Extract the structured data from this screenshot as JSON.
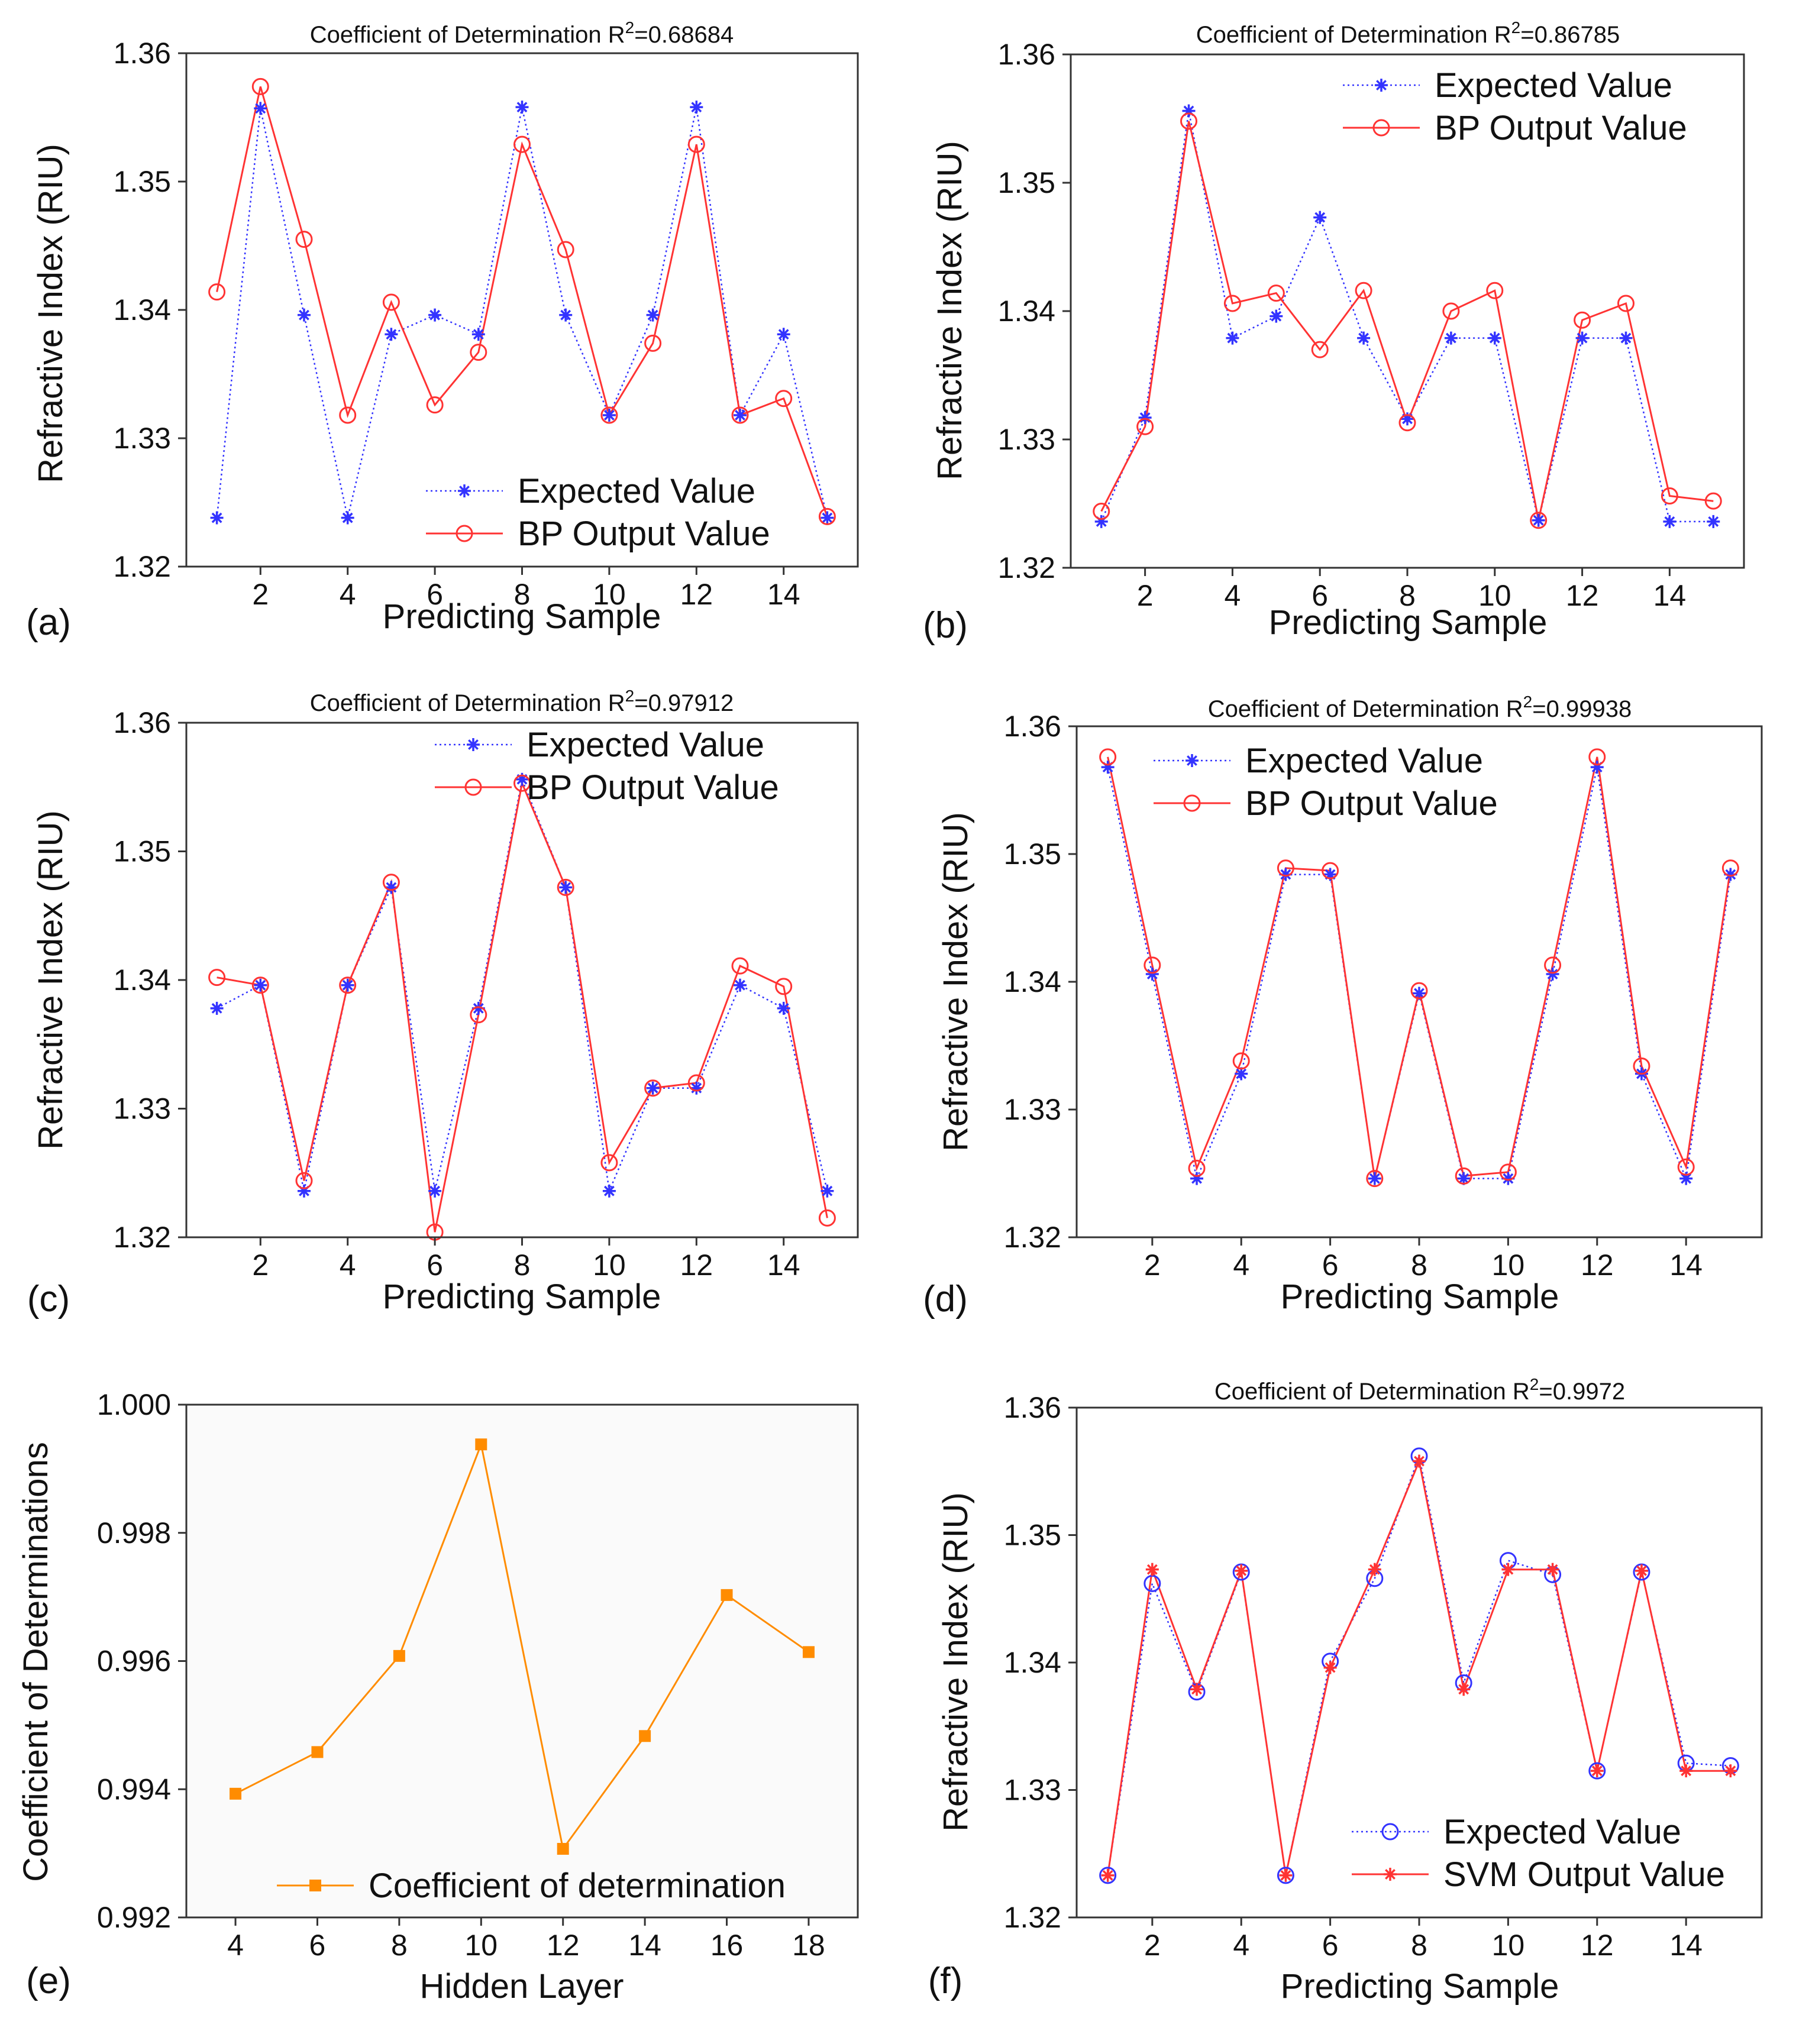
{
  "figure": {
    "chart_data": [
      {
        "panel": "(a)",
        "type": "line",
        "title": "Coefficient of Determination R²=0.68684",
        "title_prefix": "Coefficient of Determination R",
        "title_sup": "2",
        "title_suffix": "=0.68684",
        "xlabel": "Predicting Sample",
        "ylabel": "Refractive Index (RIU)",
        "xlim": [
          0.3,
          15.7
        ],
        "ylim": [
          1.32,
          1.36
        ],
        "xticks": [
          2,
          4,
          6,
          8,
          10,
          12,
          14
        ],
        "yticks": [
          1.32,
          1.33,
          1.34,
          1.35,
          1.36
        ],
        "ytick_labels": [
          "1.32",
          "1.33",
          "1.34",
          "1.35",
          "1.36"
        ],
        "legend_position": "lower-right",
        "series": [
          {
            "name": "Expected Value",
            "color": "#3333ff",
            "style": "dotted",
            "marker": "star",
            "x": [
              1,
              2,
              3,
              4,
              5,
              6,
              7,
              8,
              9,
              10,
              11,
              12,
              13,
              14,
              15
            ],
            "values": [
              1.3238,
              1.3557,
              1.3396,
              1.3238,
              1.3381,
              1.3396,
              1.3381,
              1.3558,
              1.3396,
              1.3318,
              1.3396,
              1.3558,
              1.3318,
              1.3381,
              1.3238
            ]
          },
          {
            "name": "BP Output Value",
            "color": "#ff3333",
            "style": "solid",
            "marker": "circle",
            "x": [
              1,
              2,
              3,
              4,
              5,
              6,
              7,
              8,
              9,
              10,
              11,
              12,
              13,
              14,
              15
            ],
            "values": [
              1.3414,
              1.3574,
              1.3455,
              1.3318,
              1.3406,
              1.3326,
              1.3367,
              1.3529,
              1.3447,
              1.3318,
              1.3374,
              1.3529,
              1.3318,
              1.3331,
              1.3239
            ]
          }
        ]
      },
      {
        "panel": "(b)",
        "type": "line",
        "title": "Coefficient of Determination R²=0.86785",
        "title_prefix": "Coefficient of Determination R",
        "title_sup": "2",
        "title_suffix": "=0.86785",
        "xlabel": "Predicting Sample",
        "ylabel": "Refractive Index (RIU)",
        "xlim": [
          0.3,
          15.7
        ],
        "ylim": [
          1.32,
          1.36
        ],
        "xticks": [
          2,
          4,
          6,
          8,
          10,
          12,
          14
        ],
        "yticks": [
          1.32,
          1.33,
          1.34,
          1.35,
          1.36
        ],
        "ytick_labels": [
          "1.32",
          "1.33",
          "1.34",
          "1.35",
          "1.36"
        ],
        "legend_position": "top-right",
        "series": [
          {
            "name": "Expected Value",
            "color": "#3333ff",
            "style": "dotted",
            "marker": "star",
            "x": [
              1,
              2,
              3,
              4,
              5,
              6,
              7,
              8,
              9,
              10,
              11,
              12,
              13,
              14,
              15
            ],
            "values": [
              1.3236,
              1.3317,
              1.3556,
              1.3379,
              1.3396,
              1.3473,
              1.3379,
              1.3316,
              1.3379,
              1.3379,
              1.3237,
              1.3379,
              1.3379,
              1.3236,
              1.3236
            ]
          },
          {
            "name": "BP Output Value",
            "color": "#ff3333",
            "style": "solid",
            "marker": "circle",
            "x": [
              1,
              2,
              3,
              4,
              5,
              6,
              7,
              8,
              9,
              10,
              11,
              12,
              13,
              14,
              15
            ],
            "values": [
              1.3244,
              1.331,
              1.3548,
              1.3406,
              1.3414,
              1.337,
              1.3416,
              1.3313,
              1.34,
              1.3416,
              1.3237,
              1.3393,
              1.3406,
              1.3256,
              1.3252
            ]
          }
        ]
      },
      {
        "panel": "(c)",
        "type": "line",
        "title": "Coefficient of Determination R²=0.97912",
        "title_prefix": "Coefficient of Determination R",
        "title_sup": "2",
        "title_suffix": "=0.97912",
        "xlabel": "Predicting Sample",
        "ylabel": "Refractive Index (RIU)",
        "xlim": [
          0.3,
          15.7
        ],
        "ylim": [
          1.32,
          1.36
        ],
        "xticks": [
          2,
          4,
          6,
          8,
          10,
          12,
          14
        ],
        "yticks": [
          1.32,
          1.33,
          1.34,
          1.35,
          1.36
        ],
        "ytick_labels": [
          "1.32",
          "1.33",
          "1.34",
          "1.35",
          "1.36"
        ],
        "legend_position": "top-right",
        "series": [
          {
            "name": "Expected Value",
            "color": "#3333ff",
            "style": "dotted",
            "marker": "star",
            "x": [
              1,
              2,
              3,
              4,
              5,
              6,
              7,
              8,
              9,
              10,
              11,
              12,
              13,
              14,
              15
            ],
            "values": [
              1.3378,
              1.3396,
              1.3236,
              1.3396,
              1.3472,
              1.3236,
              1.3378,
              1.3556,
              1.3472,
              1.3236,
              1.3316,
              1.3316,
              1.3396,
              1.3378,
              1.3236
            ]
          },
          {
            "name": "BP Output Value",
            "color": "#ff3333",
            "style": "solid",
            "marker": "circle",
            "x": [
              1,
              2,
              3,
              4,
              5,
              6,
              7,
              8,
              9,
              10,
              11,
              12,
              13,
              14,
              15
            ],
            "values": [
              1.3402,
              1.3396,
              1.3244,
              1.3396,
              1.3476,
              1.3204,
              1.3373,
              1.3553,
              1.3472,
              1.3258,
              1.3316,
              1.332,
              1.3411,
              1.3395,
              1.3215
            ]
          }
        ]
      },
      {
        "panel": "(d)",
        "type": "line",
        "title": "Coefficient of Determination R²=0.99938",
        "title_prefix": "Coefficient of Determination R",
        "title_sup": "2",
        "title_suffix": "=0.99938",
        "xlabel": "Predicting Sample",
        "ylabel": "Refractive Index (RIU)",
        "xlim": [
          0.3,
          15.7
        ],
        "ylim": [
          1.32,
          1.36
        ],
        "xticks": [
          2,
          4,
          6,
          8,
          10,
          12,
          14
        ],
        "yticks": [
          1.32,
          1.33,
          1.34,
          1.35,
          1.36
        ],
        "ytick_labels": [
          "1.32",
          "1.33",
          "1.34",
          "1.35",
          "1.36"
        ],
        "legend_position": "top-left",
        "series": [
          {
            "name": "Expected Value",
            "color": "#3333ff",
            "style": "dotted",
            "marker": "star",
            "x": [
              1,
              2,
              3,
              4,
              5,
              6,
              7,
              8,
              9,
              10,
              11,
              12,
              13,
              14,
              15
            ],
            "values": [
              1.3568,
              1.3406,
              1.3246,
              1.3328,
              1.3484,
              1.3484,
              1.3246,
              1.3391,
              1.3246,
              1.3246,
              1.3406,
              1.3568,
              1.3328,
              1.3246,
              1.3484
            ]
          },
          {
            "name": "BP Output Value",
            "color": "#ff3333",
            "style": "solid",
            "marker": "circle",
            "x": [
              1,
              2,
              3,
              4,
              5,
              6,
              7,
              8,
              9,
              10,
              11,
              12,
              13,
              14,
              15
            ],
            "values": [
              1.3576,
              1.3413,
              1.3254,
              1.3338,
              1.3489,
              1.3487,
              1.3246,
              1.3393,
              1.3248,
              1.3251,
              1.3413,
              1.3576,
              1.3334,
              1.3255,
              1.3489
            ]
          }
        ]
      },
      {
        "panel": "(e)",
        "type": "line",
        "title": "",
        "xlabel": "Hidden Layer",
        "ylabel": "Coefficient of Determinations",
        "xlim": [
          2.8,
          19.2
        ],
        "ylim": [
          0.992,
          1.0
        ],
        "xticks": [
          4,
          6,
          8,
          10,
          12,
          14,
          16,
          18
        ],
        "yticks": [
          0.992,
          0.994,
          0.996,
          0.998,
          1.0
        ],
        "ytick_labels": [
          "0.992",
          "0.994",
          "0.996",
          "0.998",
          "1.000"
        ],
        "legend_position": "bottom",
        "background": "#fafafa",
        "series": [
          {
            "name": "Coefficient of determination",
            "color": "#ff8c00",
            "style": "solid",
            "marker": "square",
            "x": [
              4,
              6,
              8,
              10,
              12,
              14,
              16,
              18
            ],
            "values": [
              0.99393,
              0.99458,
              0.99608,
              0.99938,
              0.99307,
              0.99483,
              0.99703,
              0.99614
            ]
          }
        ]
      },
      {
        "panel": "(f)",
        "type": "line",
        "title": "Coefficient of Determination R²=0.9972",
        "title_prefix": "Coefficient of Determination R",
        "title_sup": "2",
        "title_suffix": "=0.9972",
        "xlabel": "Predicting Sample",
        "ylabel": "Refractive Index (RIU)",
        "xlim": [
          0.3,
          15.7
        ],
        "ylim": [
          1.32,
          1.36
        ],
        "xticks": [
          2,
          4,
          6,
          8,
          10,
          12,
          14
        ],
        "yticks": [
          1.32,
          1.33,
          1.34,
          1.35,
          1.36
        ],
        "ytick_labels": [
          "1.32",
          "1.33",
          "1.34",
          "1.35",
          "1.36"
        ],
        "legend_position": "lower-right",
        "series": [
          {
            "name": "Expected Value",
            "color": "#3333ff",
            "style": "dotted",
            "marker": "circle",
            "x": [
              1,
              2,
              3,
              4,
              5,
              6,
              7,
              8,
              9,
              10,
              11,
              12,
              13,
              14,
              15
            ],
            "values": [
              1.3233,
              1.3462,
              1.3377,
              1.3471,
              1.3233,
              1.3401,
              1.3466,
              1.3562,
              1.3384,
              1.348,
              1.3469,
              1.3315,
              1.3471,
              1.3321,
              1.3319
            ]
          },
          {
            "name": "SVM Output Value",
            "color": "#ff3333",
            "style": "solid",
            "marker": "star",
            "x": [
              1,
              2,
              3,
              4,
              5,
              6,
              7,
              8,
              9,
              10,
              11,
              12,
              13,
              14,
              15
            ],
            "values": [
              1.3233,
              1.3473,
              1.3379,
              1.3472,
              1.3233,
              1.3396,
              1.3473,
              1.3558,
              1.3379,
              1.3473,
              1.3473,
              1.3315,
              1.3472,
              1.3315,
              1.3315
            ]
          }
        ]
      }
    ]
  }
}
